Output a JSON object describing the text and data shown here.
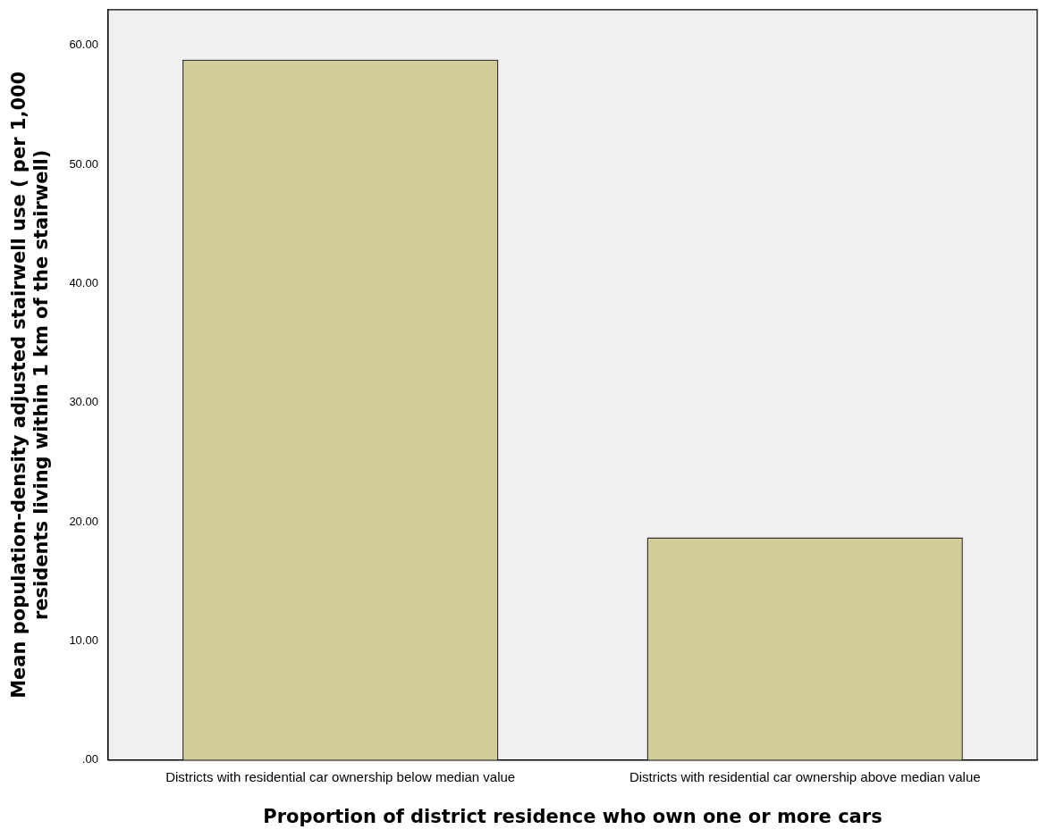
{
  "chart_data": {
    "type": "bar",
    "xlabel": "Proportion of district residence who own one or more cars",
    "ylabel": "Mean population-density adjusted stairwell use ( per 1,000 residents living within 1 km of the stairwell)",
    "categories": [
      "Districts with residential car ownership below median value",
      "Districts with residential car ownership above median value"
    ],
    "values": [
      58.8,
      18.7
    ],
    "color": "#d3ce97",
    "ylim": [
      0,
      63
    ],
    "yticks": [
      {
        "value": 0,
        "label": ".00"
      },
      {
        "value": 10,
        "label": "10.00"
      },
      {
        "value": 20,
        "label": "20.00"
      },
      {
        "value": 30,
        "label": "30.00"
      },
      {
        "value": 40,
        "label": "40.00"
      },
      {
        "value": 50,
        "label": "50.00"
      },
      {
        "value": 60,
        "label": "60.00"
      }
    ],
    "grid": false,
    "legend": false
  }
}
